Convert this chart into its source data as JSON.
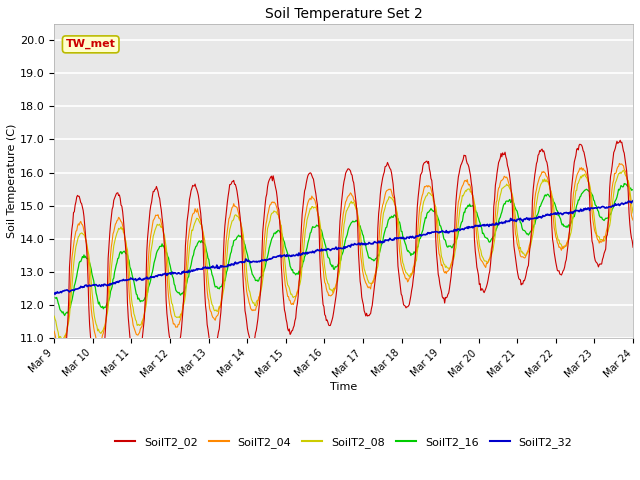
{
  "title": "Soil Temperature Set 2",
  "xlabel": "Time",
  "ylabel": "Soil Temperature (C)",
  "ylim": [
    11.0,
    20.5
  ],
  "yticks": [
    11.0,
    12.0,
    13.0,
    14.0,
    15.0,
    16.0,
    17.0,
    18.0,
    19.0,
    20.0
  ],
  "annotation_text": "TW_met",
  "annotation_bg": "#ffffcc",
  "annotation_edge": "#bbbb00",
  "annotation_text_color": "#cc0000",
  "fig_bg_color": "#ffffff",
  "plot_bg_color": "#e8e8e8",
  "line_colors": {
    "SoilT2_02": "#cc0000",
    "SoilT2_04": "#ff8800",
    "SoilT2_08": "#cccc00",
    "SoilT2_16": "#00cc00",
    "SoilT2_32": "#0000cc"
  },
  "legend_labels": [
    "SoilT2_02",
    "SoilT2_04",
    "SoilT2_08",
    "SoilT2_16",
    "SoilT2_32"
  ],
  "xtick_labels": [
    "Mar 9",
    "Mar 10",
    "Mar 11",
    "Mar 12",
    "Mar 13",
    "Mar 14",
    "Mar 15",
    "Mar 16",
    "Mar 17",
    "Mar 18",
    "Mar 19",
    "Mar 20",
    "Mar 21",
    "Mar 22",
    "Mar 23",
    "Mar 24"
  ],
  "n_days": 15,
  "pts_per_day": 48
}
